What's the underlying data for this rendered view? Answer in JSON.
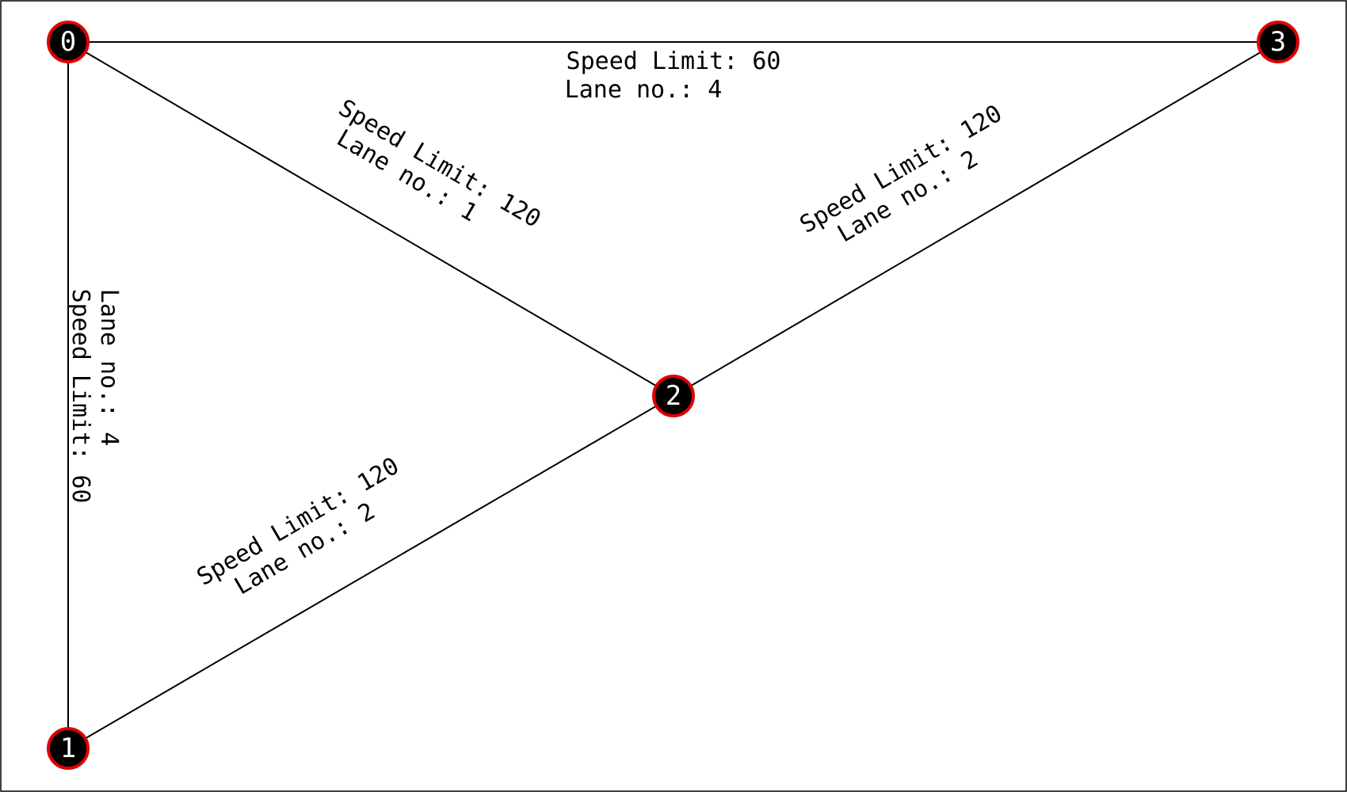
{
  "colors": {
    "node_fill": "#000000",
    "node_stroke": "#e00000",
    "node_label": "#ffffff",
    "edge": "#000000"
  },
  "nodes": [
    {
      "id": "0",
      "label": "0"
    },
    {
      "id": "1",
      "label": "1"
    },
    {
      "id": "2",
      "label": "2"
    },
    {
      "id": "3",
      "label": "3"
    }
  ],
  "edges": [
    {
      "from": "0",
      "to": "3",
      "speed_label": "Speed Limit: 60",
      "lane_label": "Lane no.: 4"
    },
    {
      "from": "0",
      "to": "2",
      "speed_label": "Speed Limit: 120",
      "lane_label": "Lane no.: 1"
    },
    {
      "from": "2",
      "to": "3",
      "speed_label": "Speed Limit: 120",
      "lane_label": "Lane no.: 2"
    },
    {
      "from": "0",
      "to": "1",
      "speed_label": "Speed Limit: 60",
      "lane_label": "Lane no.: 4"
    },
    {
      "from": "1",
      "to": "2",
      "speed_label": "Speed Limit: 120",
      "lane_label": "Lane no.: 2"
    }
  ]
}
